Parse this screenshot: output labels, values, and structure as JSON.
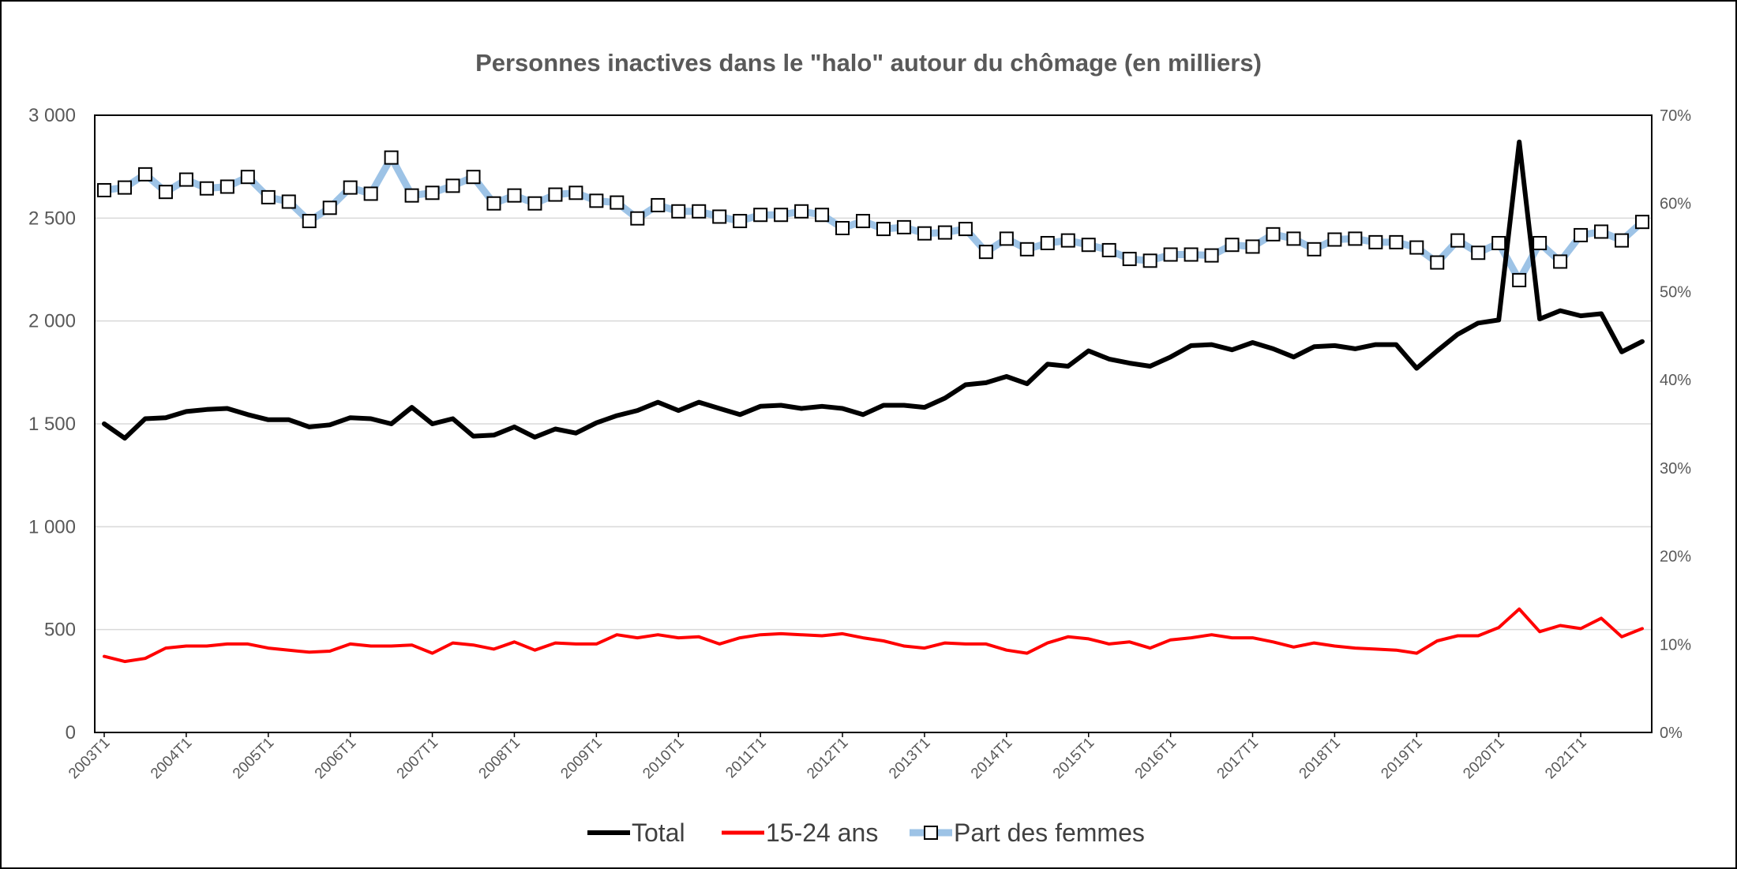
{
  "chart_data": {
    "type": "line",
    "title": "Personnes inactives dans le \"halo\" autour du chômage (en milliers)",
    "ylim": [
      0,
      3000
    ],
    "yticks": [
      0,
      500,
      1000,
      1500,
      2000,
      2500,
      3000
    ],
    "yticklabels": [
      "0",
      "500",
      "1 000",
      "1 500",
      "2 000",
      "2 500",
      "3 000"
    ],
    "y2lim": [
      0,
      0.7
    ],
    "y2ticklabels": [
      "0%",
      "10%",
      "20%",
      "30%",
      "40%",
      "50%",
      "60%",
      "70%"
    ],
    "xlabels_step": 4,
    "grid": true,
    "legend_position": "bottom",
    "x": [
      "2003T1",
      "2003T2",
      "2003T3",
      "2003T4",
      "2004T1",
      "2004T2",
      "2004T3",
      "2004T4",
      "2005T1",
      "2005T2",
      "2005T3",
      "2005T4",
      "2006T1",
      "2006T2",
      "2006T3",
      "2006T4",
      "2007T1",
      "2007T2",
      "2007T3",
      "2007T4",
      "2008T1",
      "2008T2",
      "2008T3",
      "2008T4",
      "2009T1",
      "2009T2",
      "2009T3",
      "2009T4",
      "2010T1",
      "2010T2",
      "2010T3",
      "2010T4",
      "2011T1",
      "2011T2",
      "2011T3",
      "2011T4",
      "2012T1",
      "2012T2",
      "2012T3",
      "2012T4",
      "2013T1",
      "2013T2",
      "2013T3",
      "2013T4",
      "2014T1",
      "2014T2",
      "2014T3",
      "2014T4",
      "2015T1",
      "2015T2",
      "2015T3",
      "2015T4",
      "2016T1",
      "2016T2",
      "2016T3",
      "2016T4",
      "2017T1",
      "2017T2",
      "2017T3",
      "2017T4",
      "2018T1",
      "2018T2",
      "2018T3",
      "2018T4",
      "2019T1",
      "2019T2",
      "2019T3",
      "2019T4",
      "2020T1",
      "2020T2",
      "2020T3",
      "2020T4",
      "2021T1",
      "2021T2",
      "2021T3",
      "2021T4"
    ],
    "series": [
      {
        "name": "Total",
        "axis": "left",
        "color": "#000000",
        "values": [
          1500,
          1430,
          1525,
          1530,
          1560,
          1570,
          1575,
          1545,
          1520,
          1520,
          1485,
          1495,
          1530,
          1525,
          1500,
          1580,
          1500,
          1525,
          1440,
          1445,
          1485,
          1435,
          1475,
          1455,
          1505,
          1540,
          1565,
          1605,
          1565,
          1605,
          1575,
          1545,
          1585,
          1590,
          1575,
          1585,
          1575,
          1545,
          1590,
          1590,
          1580,
          1625,
          1690,
          1700,
          1730,
          1695,
          1790,
          1780,
          1855,
          1815,
          1795,
          1780,
          1825,
          1880,
          1885,
          1860,
          1895,
          1865,
          1825,
          1875,
          1880,
          1865,
          1885,
          1885,
          1770,
          1855,
          1935,
          1990,
          2005,
          2870,
          2010,
          2050,
          2025,
          2035,
          1850,
          1900
        ]
      },
      {
        "name": "15-24 ans",
        "axis": "left",
        "color": "#ff0000",
        "values": [
          370,
          345,
          360,
          410,
          420,
          420,
          430,
          430,
          410,
          400,
          390,
          395,
          430,
          420,
          420,
          425,
          385,
          435,
          425,
          405,
          440,
          400,
          435,
          430,
          430,
          475,
          460,
          475,
          460,
          465,
          430,
          460,
          475,
          480,
          475,
          470,
          480,
          460,
          445,
          420,
          410,
          435,
          430,
          430,
          400,
          385,
          435,
          465,
          455,
          430,
          440,
          410,
          450,
          460,
          475,
          460,
          460,
          440,
          415,
          435,
          420,
          410,
          405,
          400,
          385,
          445,
          470,
          470,
          510,
          600,
          490,
          520,
          505,
          555,
          465,
          505
        ]
      },
      {
        "name": "Part des femmes",
        "axis": "right",
        "color": "#9dc3e6",
        "marker": "square",
        "values": [
          0.615,
          0.618,
          0.633,
          0.613,
          0.627,
          0.617,
          0.619,
          0.63,
          0.607,
          0.602,
          0.58,
          0.595,
          0.618,
          0.611,
          0.652,
          0.609,
          0.612,
          0.62,
          0.63,
          0.6,
          0.609,
          0.6,
          0.61,
          0.612,
          0.603,
          0.601,
          0.583,
          0.598,
          0.591,
          0.591,
          0.585,
          0.58,
          0.587,
          0.587,
          0.591,
          0.587,
          0.572,
          0.58,
          0.571,
          0.573,
          0.566,
          0.567,
          0.571,
          0.545,
          0.56,
          0.548,
          0.555,
          0.558,
          0.553,
          0.547,
          0.537,
          0.535,
          0.542,
          0.542,
          0.541,
          0.553,
          0.551,
          0.565,
          0.56,
          0.548,
          0.559,
          0.56,
          0.556,
          0.556,
          0.55,
          0.533,
          0.558,
          0.544,
          0.555,
          0.513,
          0.555,
          0.534,
          0.564,
          0.568,
          0.558,
          0.579
        ]
      }
    ]
  }
}
